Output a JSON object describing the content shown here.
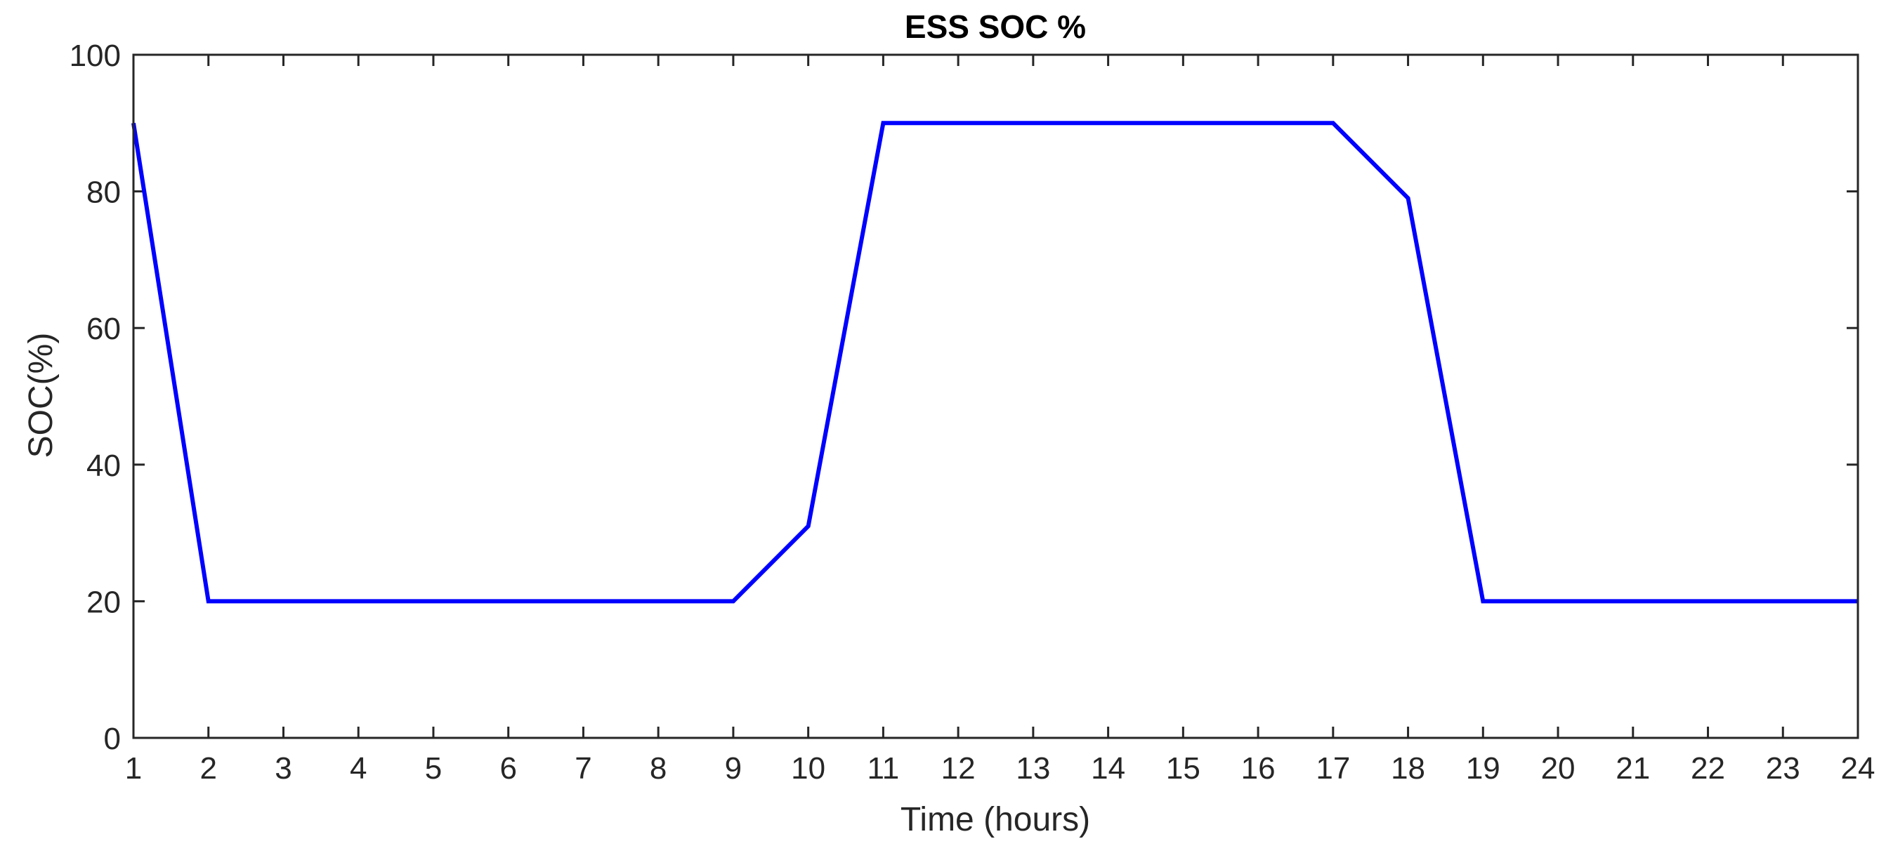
{
  "chart_data": {
    "type": "line",
    "title": "ESS SOC %",
    "xlabel": "Time (hours)",
    "ylabel": "SOC(%)",
    "xlim": [
      1,
      24
    ],
    "ylim": [
      0,
      100
    ],
    "xticks": [
      1,
      2,
      3,
      4,
      5,
      6,
      7,
      8,
      9,
      10,
      11,
      12,
      13,
      14,
      15,
      16,
      17,
      18,
      19,
      20,
      21,
      22,
      23,
      24
    ],
    "yticks": [
      0,
      20,
      40,
      60,
      80,
      100
    ],
    "grid": false,
    "box": true,
    "series": [
      {
        "color": "#0000FF",
        "x": [
          1,
          2,
          3,
          4,
          5,
          6,
          7,
          8,
          9,
          10,
          11,
          12,
          13,
          14,
          15,
          16,
          17,
          18,
          19,
          20,
          21,
          22,
          23,
          24
        ],
        "y": [
          90,
          20,
          20,
          20,
          20,
          20,
          20,
          20,
          20,
          31,
          90,
          90,
          90,
          90,
          90,
          90,
          90,
          79,
          20,
          20,
          20,
          20,
          20,
          20
        ]
      }
    ]
  }
}
